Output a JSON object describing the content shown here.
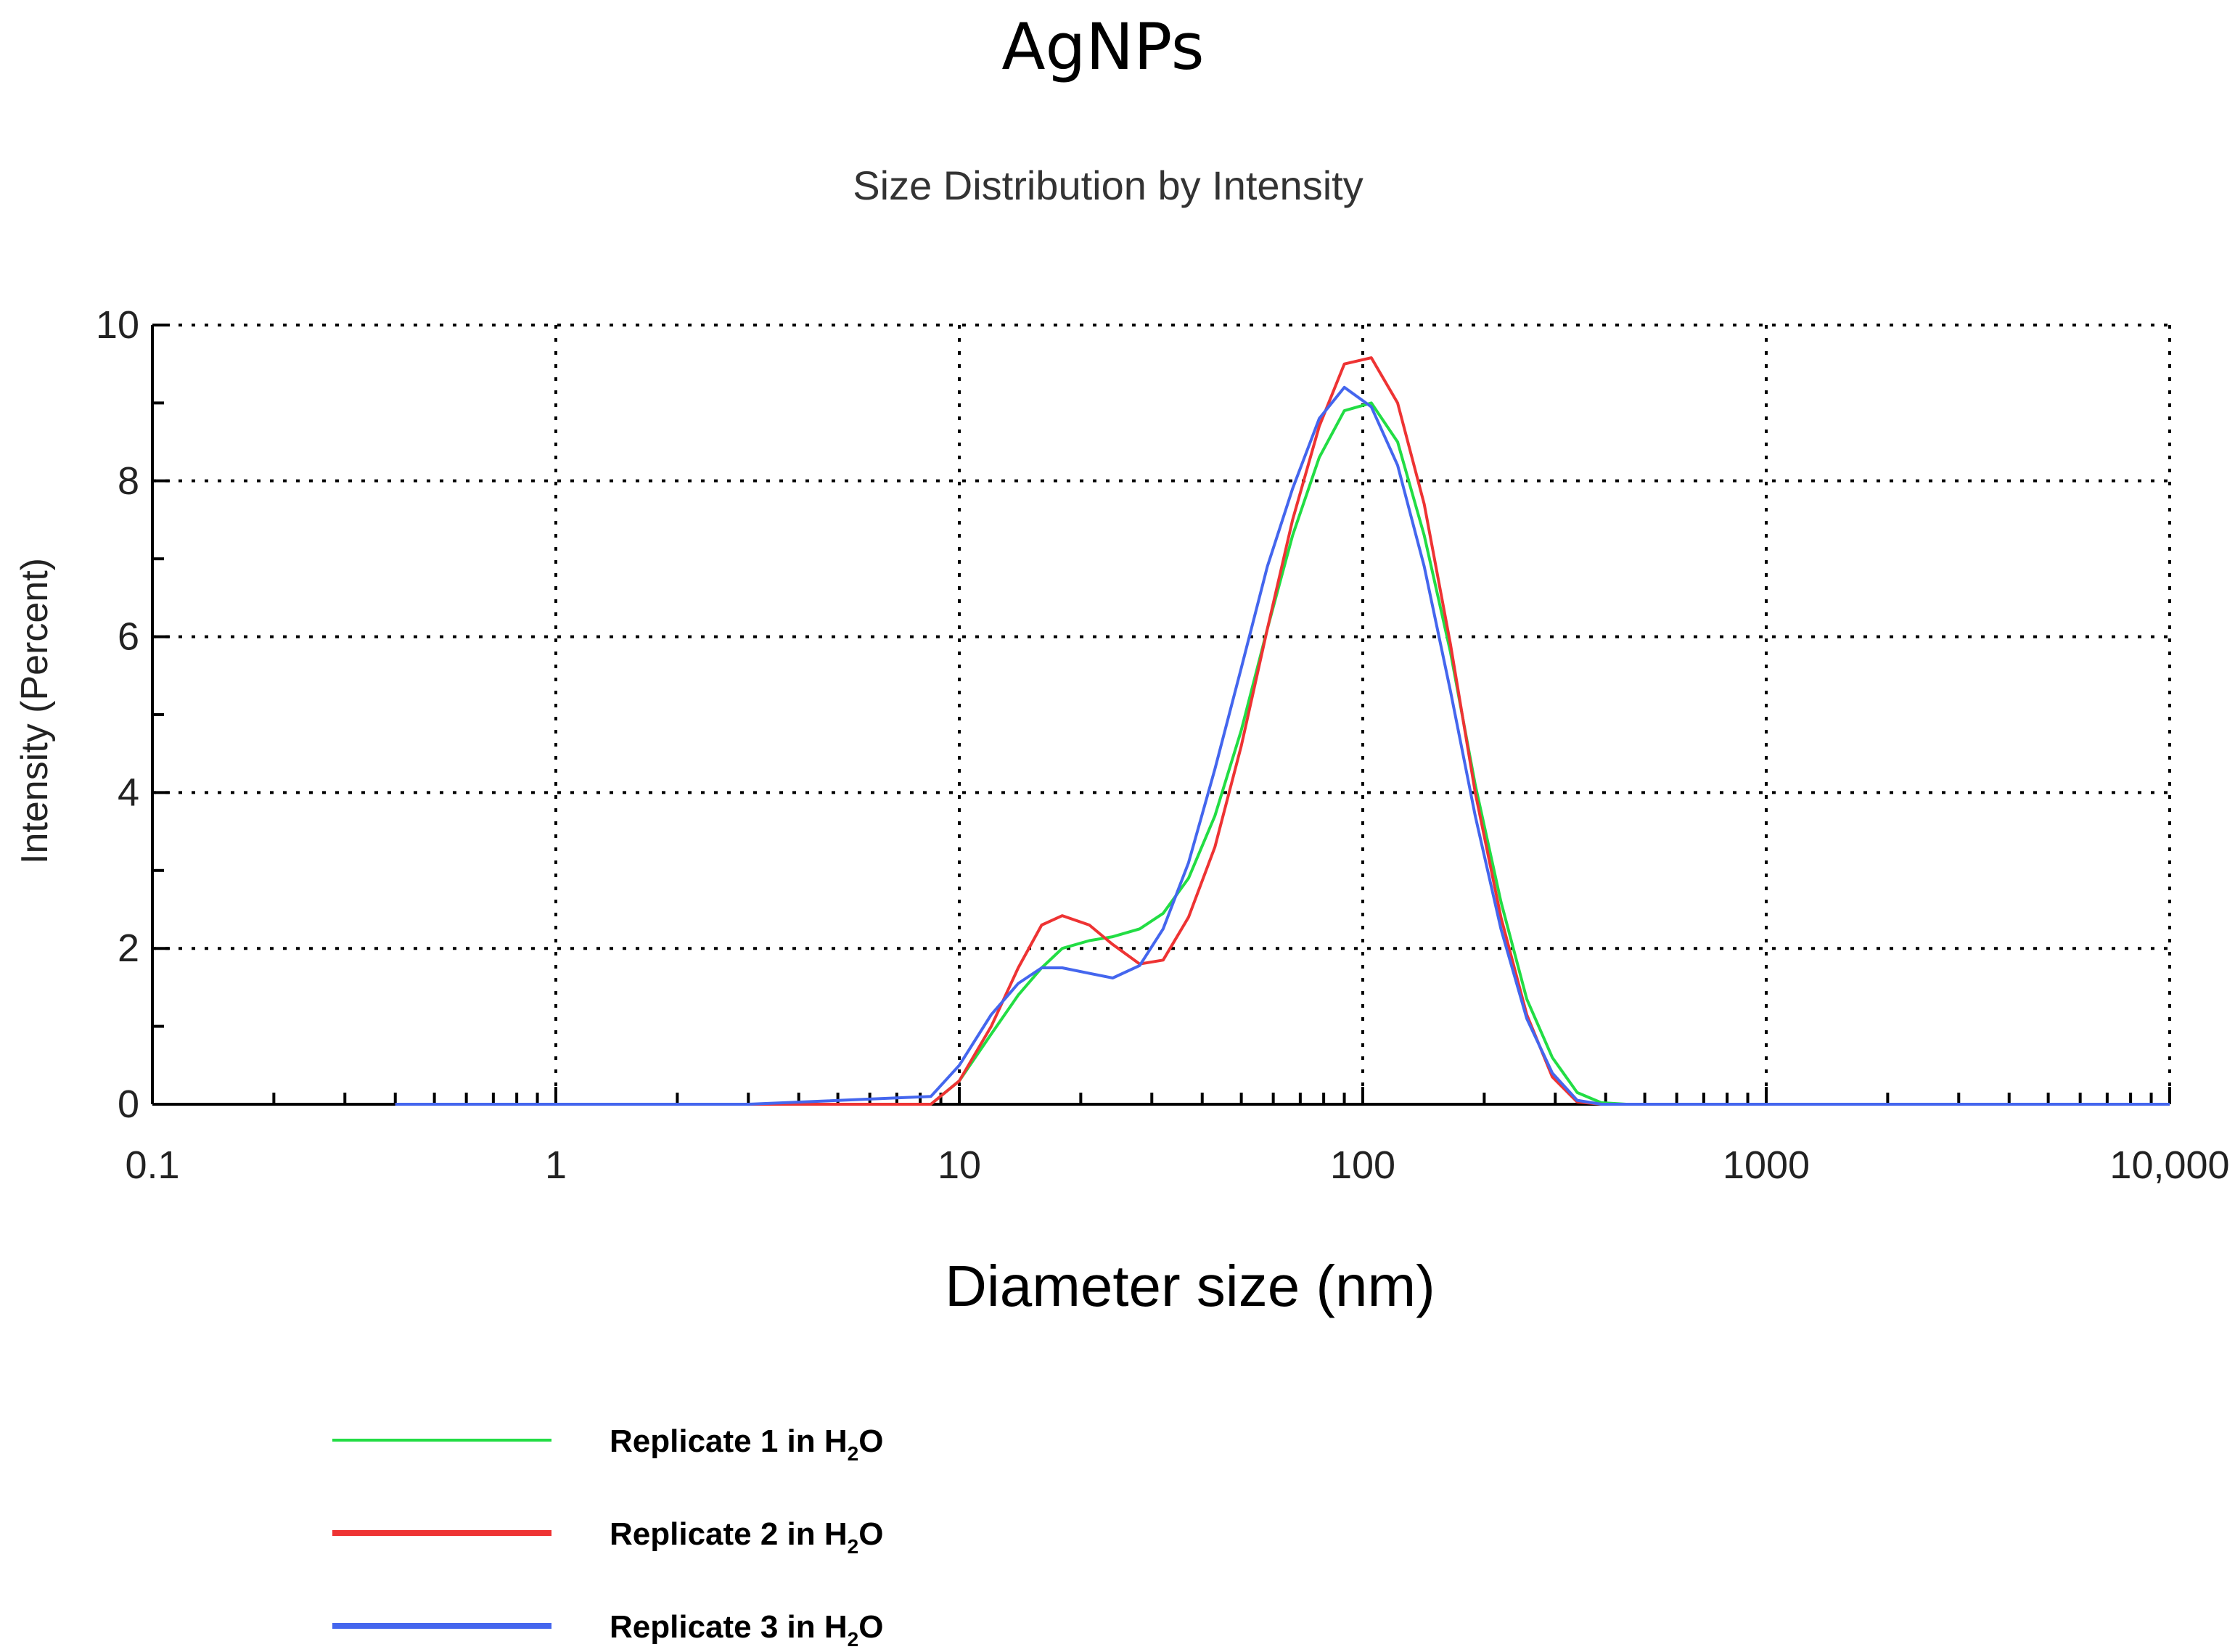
{
  "chart_data": {
    "type": "line",
    "title": "AgNPs",
    "subtitle": "Size Distribution by Intensity",
    "xlabel": "Diameter size (nm)",
    "ylabel": "Intensity (Percent)",
    "x_scale": "log",
    "xlim": [
      0.1,
      10000
    ],
    "ylim": [
      0,
      10
    ],
    "x_ticks": [
      {
        "value": 0.1,
        "label": "0.1"
      },
      {
        "value": 1,
        "label": "1"
      },
      {
        "value": 10,
        "label": "10"
      },
      {
        "value": 100,
        "label": "100"
      },
      {
        "value": 1000,
        "label": "1000"
      },
      {
        "value": 10000,
        "label": "10,000"
      }
    ],
    "y_ticks": [
      {
        "value": 0,
        "label": "0"
      },
      {
        "value": 2,
        "label": "2"
      },
      {
        "value": 4,
        "label": "4"
      },
      {
        "value": 6,
        "label": "6"
      },
      {
        "value": 8,
        "label": "8"
      },
      {
        "value": 10,
        "label": "10"
      }
    ],
    "grid": true,
    "legend_position": "bottom-left",
    "series": [
      {
        "name": "Replicate 1 in H₂O",
        "color": "#22dd44",
        "x": [
          0.4,
          1,
          3,
          8.5,
          10,
          12,
          14,
          16,
          18,
          21,
          24,
          28,
          32,
          37,
          43,
          50,
          58,
          67,
          78,
          90,
          105,
          122,
          142,
          165,
          190,
          220,
          255,
          295,
          340,
          390,
          450,
          1000,
          3000,
          10000
        ],
        "y": [
          0,
          0,
          0,
          0,
          0.3,
          0.9,
          1.4,
          1.75,
          2.0,
          2.1,
          2.15,
          2.25,
          2.45,
          2.9,
          3.7,
          4.8,
          6.1,
          7.3,
          8.3,
          8.9,
          9.0,
          8.5,
          7.3,
          5.8,
          4.1,
          2.6,
          1.35,
          0.6,
          0.15,
          0.02,
          0,
          0,
          0,
          0
        ]
      },
      {
        "name": "Replicate 2 in H₂O",
        "color": "#ee3333",
        "x": [
          0.4,
          1,
          3,
          8.5,
          10,
          12,
          14,
          16,
          18,
          21,
          24,
          28,
          32,
          37,
          43,
          50,
          58,
          67,
          78,
          90,
          105,
          122,
          142,
          165,
          190,
          220,
          255,
          295,
          340,
          390,
          450,
          1000,
          3000,
          10000
        ],
        "y": [
          0,
          0,
          0,
          0,
          0.3,
          1.0,
          1.75,
          2.3,
          2.42,
          2.3,
          2.05,
          1.8,
          1.85,
          2.4,
          3.3,
          4.6,
          6.1,
          7.5,
          8.7,
          9.5,
          9.58,
          9.0,
          7.7,
          5.9,
          4.0,
          2.4,
          1.15,
          0.35,
          0.03,
          0,
          0,
          0,
          0,
          0
        ]
      },
      {
        "name": "Replicate 3 in H₂O",
        "color": "#4466ee",
        "x": [
          0.4,
          1,
          3,
          8.5,
          10,
          12,
          14,
          16,
          18,
          21,
          24,
          28,
          32,
          37,
          43,
          50,
          58,
          67,
          78,
          90,
          105,
          122,
          142,
          165,
          190,
          220,
          255,
          295,
          340,
          390,
          450,
          1000,
          3000,
          10000
        ],
        "y": [
          0,
          0,
          0,
          0.1,
          0.5,
          1.15,
          1.55,
          1.75,
          1.75,
          1.68,
          1.62,
          1.78,
          2.25,
          3.1,
          4.3,
          5.6,
          6.9,
          7.9,
          8.8,
          9.2,
          8.95,
          8.2,
          6.9,
          5.3,
          3.7,
          2.25,
          1.1,
          0.4,
          0.05,
          0,
          0,
          0,
          0,
          0
        ]
      }
    ]
  },
  "legend": {
    "items": [
      {
        "text": "Replicate 1 in H",
        "sub": "2",
        "suffix": "O",
        "color": "#22dd44"
      },
      {
        "text": "Replicate 2 in H",
        "sub": "2",
        "suffix": "O",
        "color": "#ee3333"
      },
      {
        "text": "Replicate 3 in H",
        "sub": "2",
        "suffix": "O",
        "color": "#4466ee"
      }
    ]
  }
}
